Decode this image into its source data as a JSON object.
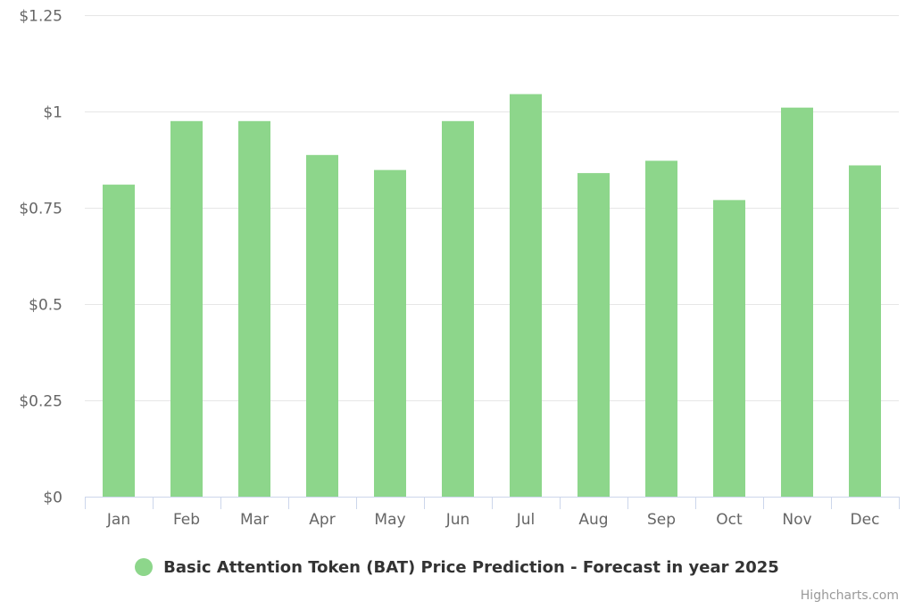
{
  "chart_data": {
    "type": "bar",
    "categories": [
      "Jan",
      "Feb",
      "Mar",
      "Apr",
      "May",
      "Jun",
      "Jul",
      "Aug",
      "Sep",
      "Oct",
      "Nov",
      "Dec"
    ],
    "series": [
      {
        "name": "Basic Attention Token (BAT) Price Prediction - Forecast in year 2025",
        "color": "#8dd68b",
        "values": [
          0.81,
          0.975,
          0.975,
          0.887,
          0.848,
          0.975,
          1.045,
          0.84,
          0.872,
          0.77,
          1.01,
          0.86
        ]
      }
    ],
    "title": "",
    "xlabel": "",
    "ylabel": "",
    "ylim": [
      0,
      1.25
    ],
    "yticks": [
      0,
      0.25,
      0.5,
      0.75,
      1,
      1.25
    ],
    "ytick_labels": [
      "$0",
      "$0.25",
      "$0.5",
      "$0.75",
      "$1",
      "$1.25"
    ],
    "grid": true,
    "legend_position": "bottom-center"
  },
  "legend": {
    "label": "Basic Attention Token (BAT) Price Prediction - Forecast in year 2025",
    "color": "#8dd68b"
  },
  "credits": "Highcharts.com",
  "colors": {
    "bar": "#8dd68b",
    "grid": "#e6e6e6",
    "axis": "#ccd6eb",
    "label": "#666666"
  }
}
